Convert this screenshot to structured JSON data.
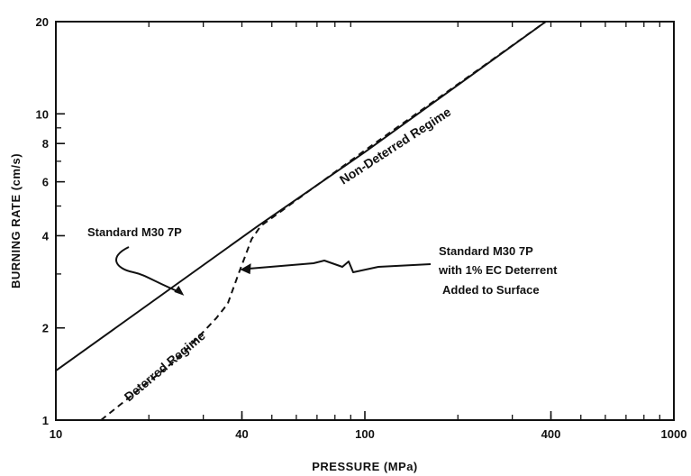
{
  "chart_data": {
    "type": "line",
    "xlabel": "PRESSURE (MPa)",
    "ylabel": "BURNING RATE (cm/s)",
    "xscale": "log",
    "yscale": "log",
    "xlim": [
      10,
      1000
    ],
    "ylim": [
      1,
      20
    ],
    "xticks": [
      {
        "value": 10,
        "label": "10"
      },
      {
        "value": 40,
        "label": "40"
      },
      {
        "value": 100,
        "label": "100"
      },
      {
        "value": 400,
        "label": "400"
      },
      {
        "value": 1000,
        "label": "1000"
      }
    ],
    "yticks": [
      {
        "value": 1,
        "label": "1"
      },
      {
        "value": 2,
        "label": "2"
      },
      {
        "value": 4,
        "label": "4"
      },
      {
        "value": 6,
        "label": "6"
      },
      {
        "value": 8,
        "label": "8"
      },
      {
        "value": 10,
        "label": "10"
      },
      {
        "value": 20,
        "label": "20"
      }
    ],
    "grid": false,
    "legend": "none",
    "series": [
      {
        "style": "solid",
        "x": [
          10,
          45,
          100,
          385
        ],
        "y": [
          1.45,
          4.3,
          7.5,
          20
        ]
      },
      {
        "style": "dashed",
        "x": [
          14,
          25,
          33,
          36,
          39,
          43,
          46,
          100,
          385
        ],
        "y": [
          1.0,
          1.6,
          2.15,
          2.4,
          3.0,
          3.9,
          4.3,
          7.6,
          20
        ]
      }
    ],
    "annotations": [
      {
        "lines": [
          "Standard M30 7P"
        ],
        "target_x": 26,
        "target_y": 2.55
      },
      {
        "lines": [
          "Standard M30 7P",
          "with 1% EC Deterrent",
          "Added to Surface"
        ],
        "target_x": 39.5,
        "target_y": 3.1
      },
      {
        "lines": [
          "Non-Deterred Regime"
        ]
      },
      {
        "lines": [
          "Deterred Regime"
        ]
      }
    ]
  }
}
